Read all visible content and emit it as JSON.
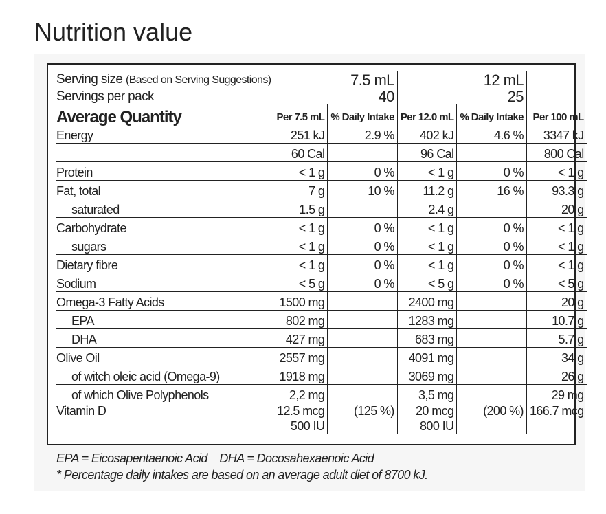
{
  "title": "Nutrition value",
  "serving_size": {
    "label": "Serving size",
    "note": "(Based on Serving Suggestions)",
    "values": [
      "7.5 mL",
      "12 mL"
    ]
  },
  "servings_per_pack": {
    "label": "Servings per pack",
    "values": [
      "40",
      "25"
    ]
  },
  "header": [
    "Average Quantity",
    "Per 7.5 mL",
    "% Daily Intake",
    "Per 12.0 mL",
    "% Daily Intake",
    "Per 100 mL"
  ],
  "rows": [
    {
      "name": "Energy",
      "cells": [
        "251 kJ",
        "2.9 %",
        "402 kJ",
        "4.6 %",
        "3347 kJ"
      ]
    },
    {
      "name": null,
      "cells": [
        "60 Cal",
        null,
        "96 Cal",
        null,
        "800 Cal"
      ]
    },
    {
      "name": "Protein",
      "cells": [
        "< 1 g",
        "0 %",
        "< 1 g",
        "0 %",
        "< 1 g"
      ]
    },
    {
      "name": "Fat, total",
      "cells": [
        "7 g",
        "10 %",
        "11.2 g",
        "16 %",
        "93.3 g"
      ],
      "subrows": [
        {
          "name": "saturated",
          "cells": [
            "1.5 g",
            null,
            "2.4 g",
            null,
            "20 g"
          ]
        }
      ]
    },
    {
      "name": "Carbohydrate",
      "cells": [
        "< 1 g",
        "0 %",
        "< 1 g",
        "0 %",
        "< 1 g"
      ],
      "subrows": [
        {
          "name": "sugars",
          "cells": [
            "< 1 g",
            "0 %",
            "< 1 g",
            "0 %",
            "< 1 g"
          ]
        }
      ]
    },
    {
      "name": "Dietary fibre",
      "cells": [
        "< 1 g",
        "0 %",
        "< 1 g",
        "0 %",
        "< 1 g"
      ]
    },
    {
      "name": "Sodium",
      "cells": [
        "< 5 g",
        "0 %",
        "< 5 g",
        "0 %",
        "< 5 g"
      ]
    },
    {
      "name": "Omega-3 Fatty Acids",
      "cells": [
        "1500 mg",
        null,
        "2400 mg",
        null,
        "20 g"
      ],
      "subrows": [
        {
          "name": "EPA",
          "cells": [
            "802 mg",
            null,
            "1283 mg",
            null,
            "10.7 g"
          ]
        },
        {
          "name": "DHA",
          "cells": [
            "427 mg",
            null,
            "683 mg",
            null,
            "5.7 g"
          ]
        }
      ]
    },
    {
      "name": "Olive Oil",
      "cells": [
        "2557 mg",
        null,
        "4091 mg",
        null,
        "34 g"
      ],
      "subrows": [
        {
          "name": "of witch oleic acid (Omega-9)",
          "cells": [
            "1918 mg",
            null,
            "3069 mg",
            null,
            "26 g"
          ]
        },
        {
          "name": "of which Olive Polyphenols",
          "cells": [
            "2,2 mg",
            null,
            "3,5 mg",
            null,
            "29 mg"
          ]
        }
      ]
    },
    {
      "name": "Vitamin D",
      "cells": [
        [
          "12.5 mcg",
          "500 IU"
        ],
        "(125 %)",
        [
          "20 mcg",
          "800 IU"
        ],
        "(200 %)",
        "166.7 mcg"
      ]
    }
  ],
  "footnotes": [
    "EPA = Eicosapentaenoic Acid",
    "DHA = Docosahexaenoic Acid",
    "* Percentage daily intakes are based on an average adult diet of 8700 kJ."
  ]
}
